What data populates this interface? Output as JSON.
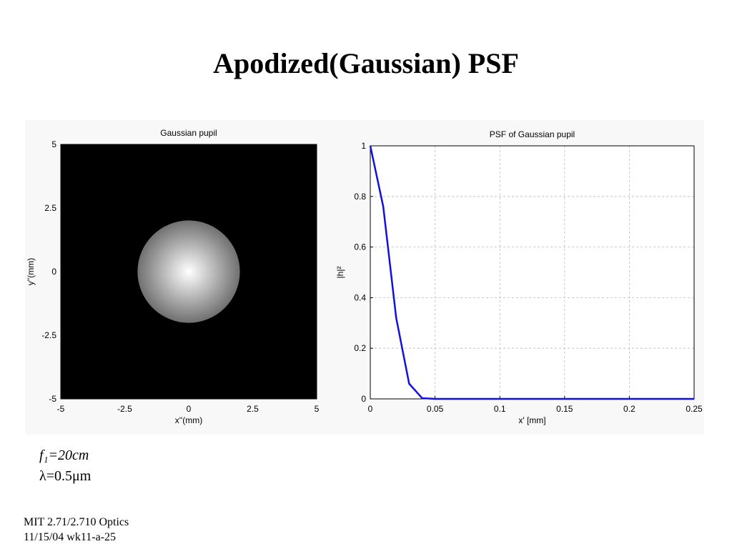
{
  "title": "Apodized(Gaussian) PSF",
  "chart_data": [
    {
      "type": "image",
      "title": "Gaussian pupil",
      "xlabel": "x''(mm)",
      "ylabel": "y''(mm)",
      "xlim": [
        -5,
        5
      ],
      "ylim": [
        -5,
        5
      ],
      "xticks": [
        -5,
        -2.5,
        0,
        2.5,
        5
      ],
      "yticks": [
        -5,
        -2.5,
        0,
        2.5,
        5
      ],
      "radius": 2,
      "background": "#000000",
      "color": "#ffffff"
    },
    {
      "type": "line",
      "title": "PSF of Gaussian pupil",
      "xlabel": "x' [mm]",
      "ylabel": "|h|²",
      "xlim": [
        0,
        0.25
      ],
      "ylim": [
        0,
        1
      ],
      "xticks": [
        0,
        0.05,
        0.1,
        0.15,
        0.2,
        0.25
      ],
      "yticks": [
        0,
        0.2,
        0.4,
        0.6,
        0.8,
        1
      ],
      "grid": true,
      "x": [
        0,
        0.01,
        0.02,
        0.03,
        0.04,
        0.05,
        0.06,
        0.07,
        0.08,
        0.09,
        0.1,
        0.11,
        0.12,
        0.13,
        0.14,
        0.15,
        0.16,
        0.17,
        0.18,
        0.19,
        0.2,
        0.21,
        0.22,
        0.23,
        0.24,
        0.25
      ],
      "series": [
        {
          "color": "#1010e0",
          "values": [
            1,
            0.76,
            0.32,
            0.06,
            0.003,
            0,
            0,
            0,
            0,
            0,
            0,
            0,
            0,
            0,
            0,
            0,
            0,
            0,
            0,
            0,
            0,
            0,
            0,
            0,
            0,
            0
          ]
        }
      ]
    }
  ],
  "notes": [
    "f₁=20cm",
    "λ=0.5μm"
  ],
  "footer": [
    "MIT 2.71/2.710 Optics",
    "11/15/04 wk11-a-25"
  ]
}
